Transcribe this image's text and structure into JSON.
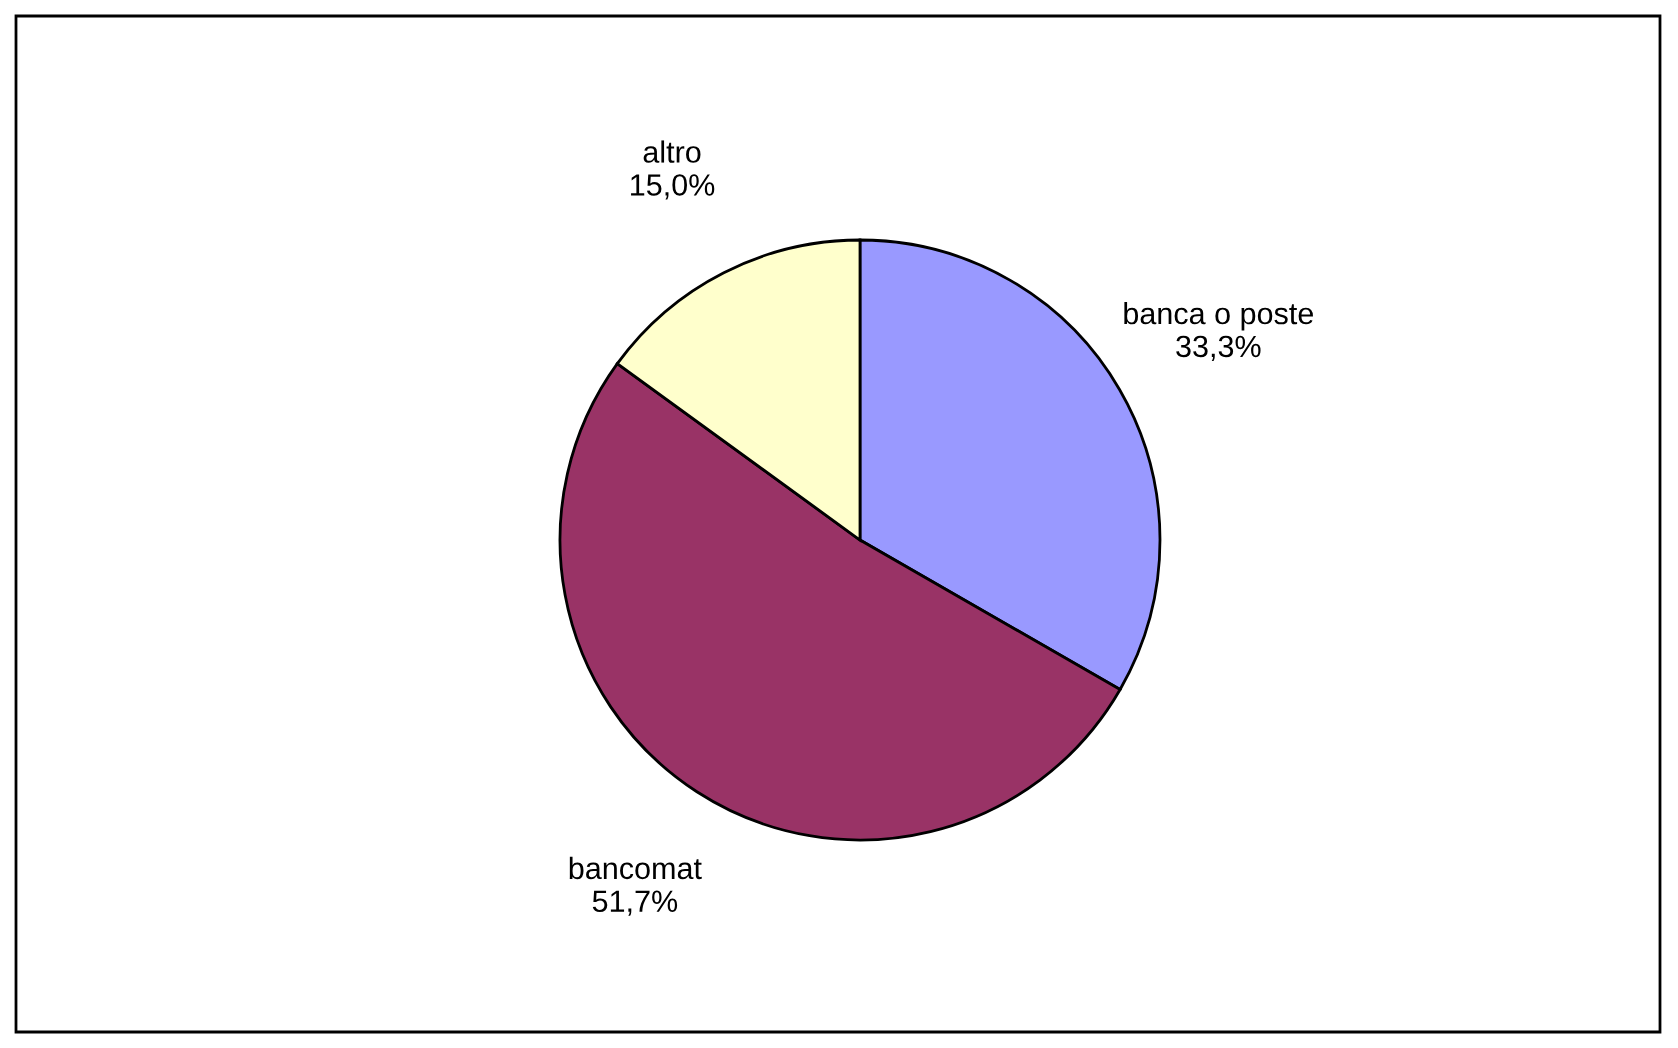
{
  "chart_data": {
    "type": "pie",
    "categories": [
      "banca o poste",
      "bancomat",
      "altro"
    ],
    "values": [
      33.3,
      51.7,
      15.0
    ],
    "value_labels": [
      "33,3%",
      "51,7%",
      "15,0%"
    ],
    "colors": [
      "#9999ff",
      "#993366",
      "#ffffcc"
    ],
    "legend": false
  }
}
